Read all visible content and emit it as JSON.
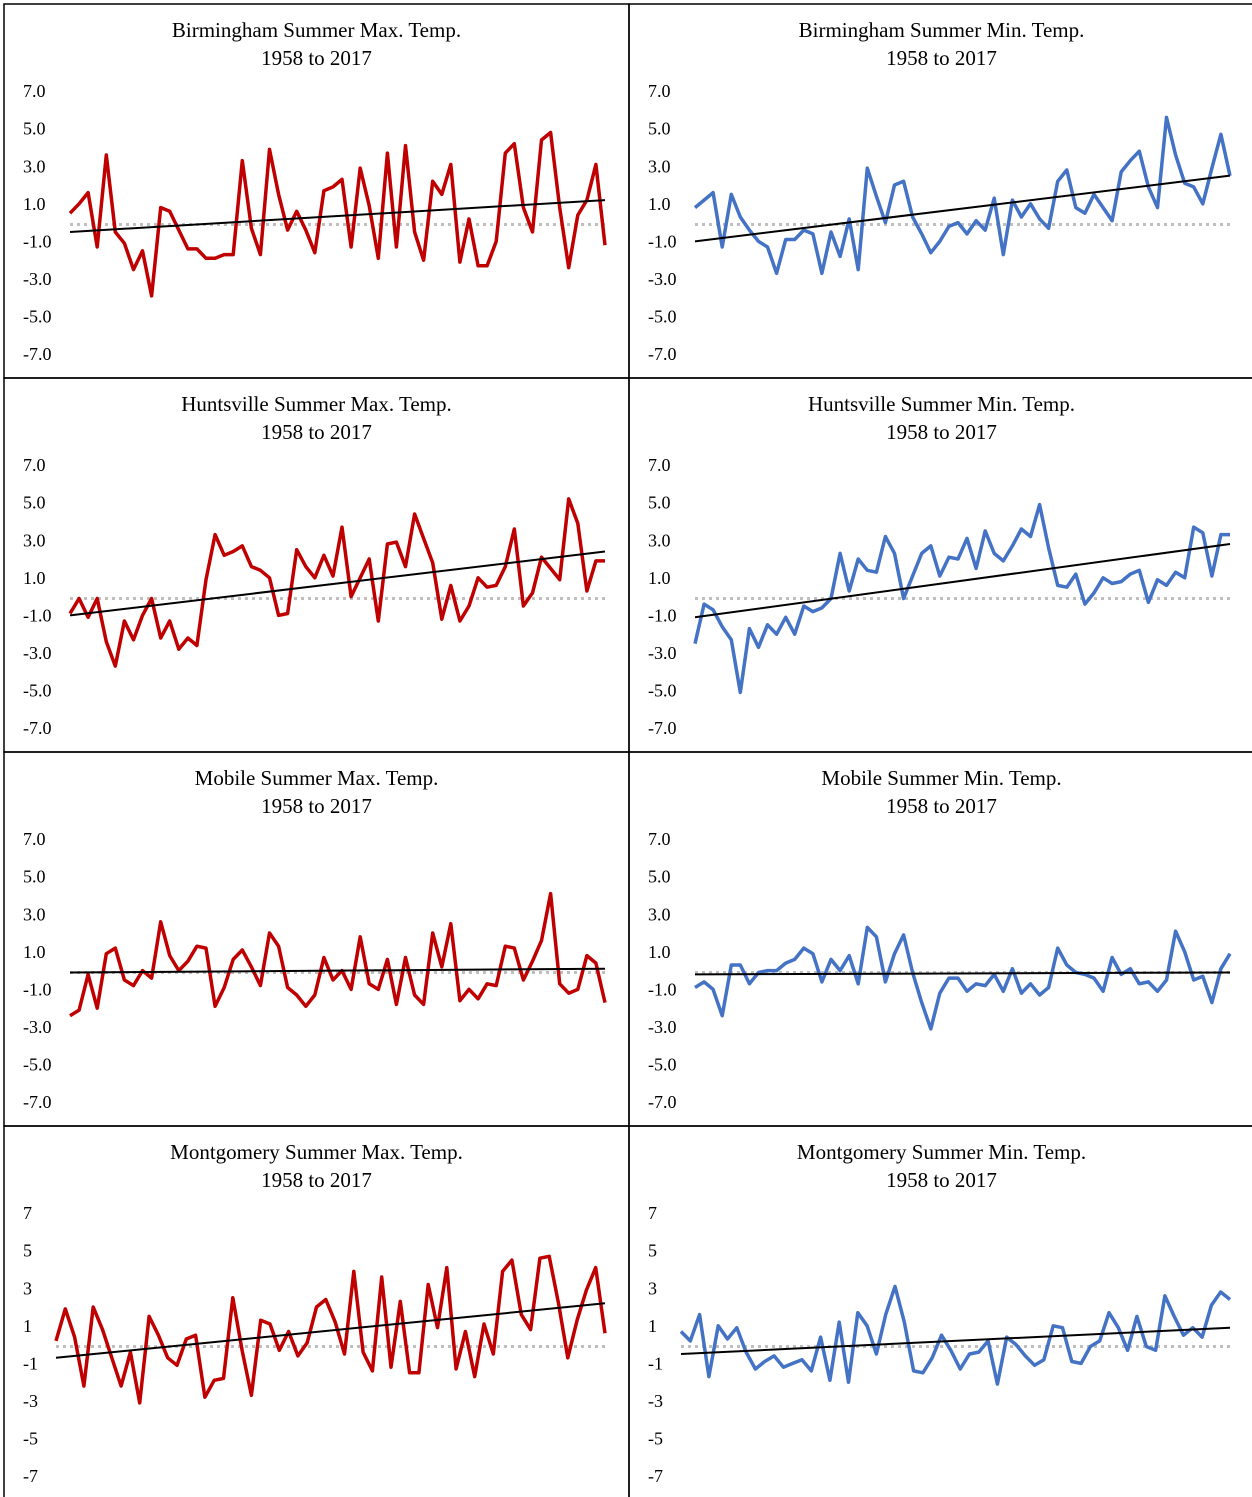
{
  "chart_data": [
    {
      "type": "line",
      "title": "Birmingham Summer Max. Temp.",
      "subtitle": "1958 to 2017",
      "color": "#c00000",
      "values": [
        0.6,
        1.1,
        1.7,
        -1.2,
        3.7,
        -0.4,
        -1.0,
        -2.4,
        -1.4,
        -3.8,
        0.9,
        0.7,
        -0.3,
        -1.3,
        -1.3,
        -1.8,
        -1.8,
        -1.6,
        -1.6,
        3.4,
        -0.2,
        -1.6,
        4.0,
        1.6,
        -0.3,
        0.7,
        -0.3,
        -1.5,
        1.8,
        2.0,
        2.4,
        -1.2,
        3.0,
        1.0,
        -1.8,
        3.8,
        -1.2,
        4.2,
        -0.4,
        -1.9,
        2.3,
        1.6,
        3.2,
        -2.0,
        0.3,
        -2.2,
        -2.2,
        -0.9,
        3.8,
        4.3,
        0.9,
        -0.4,
        4.5,
        4.9,
        0.9,
        -2.3,
        0.5,
        1.3,
        3.2,
        -1.1
      ],
      "trend": [
        -0.4,
        1.3
      ],
      "trend_color": "#000000",
      "hline": 0,
      "hline_color": "#bfbfbf",
      "ylim": [
        -7,
        7
      ],
      "yticks": [
        {
          "value": 7,
          "label": "7.0"
        },
        {
          "value": 5,
          "label": "5.0"
        },
        {
          "value": 3,
          "label": "3.0"
        },
        {
          "value": 1,
          "label": "1.0"
        },
        {
          "value": -1,
          "label": "-1.0"
        },
        {
          "value": -3,
          "label": "-3.0"
        },
        {
          "value": -5,
          "label": "-5.0"
        },
        {
          "value": -7,
          "label": "-7.0"
        }
      ]
    },
    {
      "type": "line",
      "title": "Birmingham Summer Min. Temp.",
      "subtitle": "1958 to 2017",
      "color": "#4472c4",
      "values": [
        0.9,
        1.3,
        1.7,
        -1.2,
        1.6,
        0.4,
        -0.3,
        -0.9,
        -1.2,
        -2.6,
        -0.8,
        -0.8,
        -0.3,
        -0.5,
        -2.6,
        -0.4,
        -1.7,
        0.3,
        -2.4,
        3.0,
        1.5,
        0.1,
        2.1,
        2.3,
        0.4,
        -0.5,
        -1.5,
        -0.9,
        -0.1,
        0.1,
        -0.5,
        0.2,
        -0.3,
        1.4,
        -1.6,
        1.3,
        0.4,
        1.1,
        0.3,
        -0.2,
        2.3,
        2.9,
        0.9,
        0.6,
        1.6,
        0.9,
        0.2,
        2.8,
        3.4,
        3.9,
        2.0,
        0.9,
        5.7,
        3.7,
        2.2,
        2.0,
        1.1,
        3.0,
        4.8,
        2.6
      ],
      "trend": [
        -0.9,
        2.6
      ],
      "trend_color": "#000000",
      "hline": 0,
      "hline_color": "#bfbfbf",
      "ylim": [
        -7,
        7
      ],
      "yticks": [
        {
          "value": 7,
          "label": "7.0"
        },
        {
          "value": 5,
          "label": "5.0"
        },
        {
          "value": 3,
          "label": "3.0"
        },
        {
          "value": 1,
          "label": "1.0"
        },
        {
          "value": -1,
          "label": "-1.0"
        },
        {
          "value": -3,
          "label": "-3.0"
        },
        {
          "value": -5,
          "label": "-5.0"
        },
        {
          "value": -7,
          "label": "-7.0"
        }
      ]
    },
    {
      "type": "line",
      "title": "Huntsville Summer Max. Temp.",
      "subtitle": "1958 to 2017",
      "color": "#c00000",
      "values": [
        -0.8,
        0.0,
        -1.0,
        0.0,
        -2.3,
        -3.6,
        -1.2,
        -2.2,
        -0.9,
        0.0,
        -2.1,
        -1.2,
        -2.7,
        -2.1,
        -2.5,
        1.0,
        3.4,
        2.3,
        2.5,
        2.8,
        1.7,
        1.5,
        1.1,
        -0.9,
        -0.8,
        2.6,
        1.7,
        1.1,
        2.3,
        1.2,
        3.8,
        0.1,
        1.1,
        2.1,
        -1.2,
        2.9,
        3.0,
        1.7,
        4.5,
        3.2,
        1.9,
        -1.1,
        0.7,
        -1.2,
        -0.4,
        1.1,
        0.6,
        0.7,
        1.7,
        3.7,
        -0.4,
        0.3,
        2.2,
        1.6,
        1.0,
        5.3,
        4.0,
        0.4,
        2.0,
        2.0
      ],
      "trend": [
        -0.9,
        2.5
      ],
      "trend_color": "#000000",
      "hline": 0,
      "hline_color": "#bfbfbf",
      "ylim": [
        -7,
        7
      ],
      "yticks": [
        {
          "value": 7,
          "label": "7.0"
        },
        {
          "value": 5,
          "label": "5.0"
        },
        {
          "value": 3,
          "label": "3.0"
        },
        {
          "value": 1,
          "label": "1.0"
        },
        {
          "value": -1,
          "label": "-1.0"
        },
        {
          "value": -3,
          "label": "-3.0"
        },
        {
          "value": -5,
          "label": "-5.0"
        },
        {
          "value": -7,
          "label": "-7.0"
        }
      ]
    },
    {
      "type": "line",
      "title": "Huntsville Summer Min. Temp.",
      "subtitle": "1958 to 2017",
      "color": "#4472c4",
      "values": [
        -2.4,
        -0.3,
        -0.6,
        -1.5,
        -2.2,
        -5.0,
        -1.6,
        -2.6,
        -1.4,
        -1.9,
        -1.0,
        -1.9,
        -0.4,
        -0.7,
        -0.5,
        0.0,
        2.4,
        0.4,
        2.1,
        1.5,
        1.4,
        3.3,
        2.4,
        0.0,
        1.2,
        2.4,
        2.8,
        1.2,
        2.2,
        2.1,
        3.2,
        1.6,
        3.6,
        2.4,
        2.0,
        2.8,
        3.7,
        3.3,
        5.0,
        2.7,
        0.7,
        0.6,
        1.3,
        -0.3,
        0.3,
        1.1,
        0.8,
        0.9,
        1.3,
        1.5,
        -0.2,
        1.0,
        0.7,
        1.4,
        1.1,
        3.8,
        3.5,
        1.2,
        3.4,
        3.4
      ],
      "trend": [
        -1.0,
        2.9
      ],
      "trend_color": "#000000",
      "hline": 0,
      "hline_color": "#bfbfbf",
      "ylim": [
        -7,
        7
      ],
      "yticks": [
        {
          "value": 7,
          "label": "7.0"
        },
        {
          "value": 5,
          "label": "5.0"
        },
        {
          "value": 3,
          "label": "3.0"
        },
        {
          "value": 1,
          "label": "1.0"
        },
        {
          "value": -1,
          "label": "-1.0"
        },
        {
          "value": -3,
          "label": "-3.0"
        },
        {
          "value": -5,
          "label": "-5.0"
        },
        {
          "value": -7,
          "label": "-7.0"
        }
      ]
    },
    {
      "type": "line",
      "title": "Mobile Summer Max. Temp.",
      "subtitle": "1958 to 2017",
      "color": "#c00000",
      "values": [
        -2.3,
        -2.0,
        -0.1,
        -1.9,
        1.0,
        1.3,
        -0.4,
        -0.7,
        0.1,
        -0.3,
        2.7,
        0.9,
        0.1,
        0.6,
        1.4,
        1.3,
        -1.8,
        -0.8,
        0.7,
        1.2,
        0.3,
        -0.7,
        2.1,
        1.4,
        -0.8,
        -1.2,
        -1.8,
        -1.2,
        0.8,
        -0.4,
        0.1,
        -0.9,
        1.9,
        -0.6,
        -0.9,
        0.7,
        -1.7,
        0.8,
        -1.2,
        -1.7,
        2.1,
        0.3,
        2.6,
        -1.5,
        -0.9,
        -1.4,
        -0.6,
        -0.7,
        1.4,
        1.3,
        -0.4,
        0.6,
        1.7,
        4.2,
        -0.6,
        -1.1,
        -0.9,
        0.9,
        0.5,
        -1.6
      ],
      "trend": [
        0.0,
        0.2
      ],
      "trend_color": "#000000",
      "hline": 0,
      "hline_color": "#bfbfbf",
      "ylim": [
        -7,
        7
      ],
      "yticks": [
        {
          "value": 7,
          "label": "7.0"
        },
        {
          "value": 5,
          "label": "5.0"
        },
        {
          "value": 3,
          "label": "3.0"
        },
        {
          "value": 1,
          "label": "1.0"
        },
        {
          "value": -1,
          "label": "-1.0"
        },
        {
          "value": -3,
          "label": "-3.0"
        },
        {
          "value": -5,
          "label": "-5.0"
        },
        {
          "value": -7,
          "label": "-7.0"
        }
      ]
    },
    {
      "type": "line",
      "title": "Mobile Summer Min. Temp.",
      "subtitle": "1958 to 2017",
      "color": "#4472c4",
      "values": [
        -0.8,
        -0.5,
        -0.9,
        -2.3,
        0.4,
        0.4,
        -0.6,
        0.0,
        0.1,
        0.1,
        0.5,
        0.7,
        1.3,
        1.0,
        -0.5,
        0.7,
        0.1,
        0.9,
        -0.6,
        2.4,
        1.9,
        -0.5,
        1.0,
        2.0,
        0.0,
        -1.6,
        -3.0,
        -1.1,
        -0.3,
        -0.3,
        -1.0,
        -0.6,
        -0.7,
        -0.1,
        -1.0,
        0.2,
        -1.1,
        -0.6,
        -1.2,
        -0.8,
        1.3,
        0.4,
        0.0,
        -0.1,
        -0.3,
        -1.0,
        0.8,
        -0.1,
        0.2,
        -0.6,
        -0.5,
        -1.0,
        -0.4,
        2.2,
        1.1,
        -0.4,
        -0.2,
        -1.6,
        0.2,
        1.0
      ],
      "trend": [
        -0.1,
        0.0
      ],
      "trend_color": "#000000",
      "hline": 0,
      "hline_color": "#bfbfbf",
      "ylim": [
        -7,
        7
      ],
      "yticks": [
        {
          "value": 7,
          "label": "7.0"
        },
        {
          "value": 5,
          "label": "5.0"
        },
        {
          "value": 3,
          "label": "3.0"
        },
        {
          "value": 1,
          "label": "1.0"
        },
        {
          "value": -1,
          "label": "-1.0"
        },
        {
          "value": -3,
          "label": "-3.0"
        },
        {
          "value": -5,
          "label": "-5.0"
        },
        {
          "value": -7,
          "label": "-7.0"
        }
      ]
    },
    {
      "type": "line",
      "title": "Montgomery Summer Max. Temp.",
      "subtitle": "1958 to 2017",
      "color": "#c00000",
      "values": [
        0.3,
        2.0,
        0.5,
        -2.1,
        2.1,
        0.9,
        -0.6,
        -2.1,
        -0.3,
        -3.0,
        1.6,
        0.6,
        -0.6,
        -1.0,
        0.4,
        0.6,
        -2.7,
        -1.8,
        -1.7,
        2.6,
        -0.2,
        -2.6,
        1.4,
        1.2,
        -0.2,
        0.8,
        -0.5,
        0.2,
        2.1,
        2.5,
        1.3,
        -0.4,
        4.0,
        -0.3,
        -1.3,
        3.7,
        -1.1,
        2.4,
        -1.4,
        -1.4,
        3.3,
        1.0,
        4.2,
        -1.2,
        0.8,
        -1.6,
        1.2,
        -0.4,
        4.0,
        4.6,
        1.7,
        0.9,
        4.7,
        4.8,
        2.3,
        -0.6,
        1.4,
        3.0,
        4.2,
        0.7
      ],
      "trend": [
        -0.6,
        2.3
      ],
      "trend_color": "#000000",
      "hline": 0,
      "hline_color": "#bfbfbf",
      "ylim": [
        -7,
        7
      ],
      "yticks": [
        7,
        5,
        3,
        1,
        -1,
        -3,
        -5,
        -7
      ]
    },
    {
      "type": "line",
      "title": "Montgomery Summer Min. Temp.",
      "subtitle": "1958 to 2017",
      "color": "#4472c4",
      "values": [
        0.8,
        0.3,
        1.7,
        -1.6,
        1.1,
        0.4,
        1.0,
        -0.3,
        -1.2,
        -0.8,
        -0.5,
        -1.1,
        -0.9,
        -0.7,
        -1.3,
        0.5,
        -1.8,
        1.3,
        -1.9,
        1.8,
        1.1,
        -0.4,
        1.7,
        3.2,
        1.3,
        -1.3,
        -1.4,
        -0.6,
        0.6,
        -0.2,
        -1.2,
        -0.4,
        -0.3,
        0.3,
        -2.0,
        0.5,
        0.1,
        -0.5,
        -1.0,
        -0.7,
        1.1,
        1.0,
        -0.8,
        -0.9,
        0.0,
        0.3,
        1.8,
        1.0,
        -0.2,
        1.6,
        0.0,
        -0.2,
        2.7,
        1.6,
        0.6,
        1.0,
        0.5,
        2.2,
        2.9,
        2.5
      ],
      "trend": [
        -0.4,
        1.0
      ],
      "trend_color": "#000000",
      "hline": 0,
      "hline_color": "#bfbfbf",
      "ylim": [
        -7,
        7
      ],
      "yticks": [
        7,
        5,
        3,
        1,
        -1,
        -3,
        -5,
        -7
      ]
    }
  ]
}
